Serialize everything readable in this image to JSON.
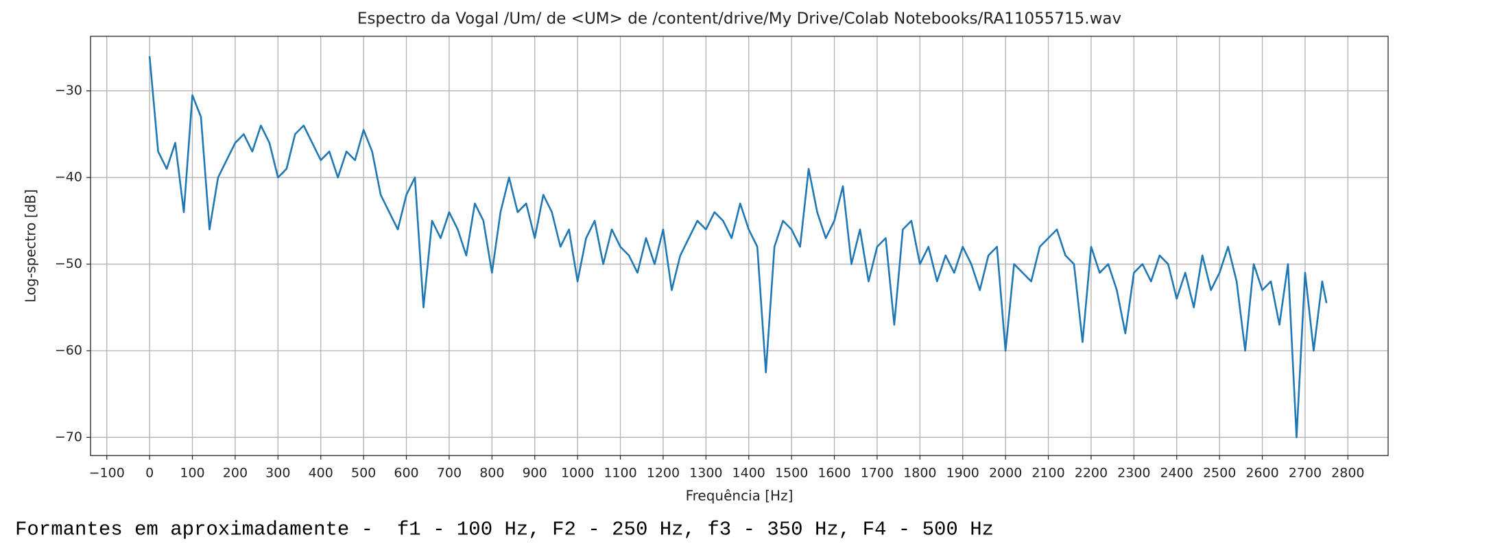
{
  "chart_data": {
    "type": "line",
    "title": "Espectro da Vogal /Um/ de <UM> de /content/drive/My Drive/Colab Notebooks/RA11055715.wav",
    "x_label": "Frequência [Hz]",
    "y_label": "Log-spectro [dB]",
    "x": [
      0,
      20,
      40,
      60,
      80,
      100,
      120,
      140,
      160,
      180,
      200,
      220,
      240,
      260,
      280,
      300,
      320,
      340,
      360,
      380,
      400,
      420,
      440,
      460,
      480,
      500,
      520,
      540,
      560,
      580,
      600,
      620,
      640,
      660,
      680,
      700,
      720,
      740,
      760,
      780,
      800,
      820,
      840,
      860,
      880,
      900,
      920,
      940,
      960,
      980,
      1000,
      1020,
      1040,
      1060,
      1080,
      1100,
      1120,
      1140,
      1160,
      1180,
      1200,
      1220,
      1240,
      1260,
      1280,
      1300,
      1320,
      1340,
      1360,
      1380,
      1400,
      1420,
      1440,
      1460,
      1480,
      1500,
      1520,
      1540,
      1560,
      1580,
      1600,
      1620,
      1640,
      1660,
      1680,
      1700,
      1720,
      1740,
      1760,
      1780,
      1800,
      1820,
      1840,
      1860,
      1880,
      1900,
      1920,
      1940,
      1960,
      1980,
      2000,
      2020,
      2040,
      2060,
      2080,
      2100,
      2120,
      2140,
      2160,
      2180,
      2200,
      2220,
      2240,
      2260,
      2280,
      2300,
      2320,
      2340,
      2360,
      2380,
      2400,
      2420,
      2440,
      2460,
      2480,
      2500,
      2520,
      2540,
      2560,
      2580,
      2600,
      2620,
      2640,
      2660,
      2680,
      2700,
      2720,
      2740,
      2750
    ],
    "series": [
      {
        "color": "#1f77b4",
        "values": [
          -26,
          -37,
          -39,
          -36,
          -44,
          -30.5,
          -33,
          -46,
          -40,
          -38,
          -36,
          -35,
          -37,
          -34,
          -36,
          -40,
          -39,
          -35,
          -34,
          -36,
          -38,
          -37,
          -40,
          -37,
          -38,
          -34.5,
          -37,
          -42,
          -44,
          -46,
          -42,
          -40,
          -55,
          -45,
          -47,
          -44,
          -46,
          -49,
          -43,
          -45,
          -51,
          -44,
          -40,
          -44,
          -43,
          -47,
          -42,
          -44,
          -48,
          -46,
          -52,
          -47,
          -45,
          -50,
          -46,
          -48,
          -49,
          -51,
          -47,
          -50,
          -46,
          -53,
          -49,
          -47,
          -45,
          -46,
          -44,
          -45,
          -47,
          -43,
          -46,
          -48,
          -62.5,
          -48,
          -45,
          -46,
          -48,
          -39,
          -44,
          -47,
          -45,
          -41,
          -50,
          -46,
          -52,
          -48,
          -47,
          -57,
          -46,
          -45,
          -50,
          -48,
          -52,
          -49,
          -51,
          -48,
          -50,
          -53,
          -49,
          -48,
          -60,
          -50,
          -51,
          -52,
          -48,
          -47,
          -46,
          -49,
          -50,
          -59,
          -48,
          -51,
          -50,
          -53,
          -58,
          -51,
          -50,
          -52,
          -49,
          -50,
          -54,
          -51,
          -55,
          -49,
          -53,
          -51,
          -48,
          -52,
          -60,
          -50,
          -53,
          -52,
          -57,
          -50,
          -70,
          -51,
          -60,
          -52,
          -54.5
        ]
      }
    ],
    "xlim": [
      -138,
      2894
    ],
    "ylim": [
      -72.1,
      -23.7
    ],
    "xticks": [
      {
        "value": -100,
        "label": "−100"
      },
      0,
      100,
      200,
      300,
      400,
      500,
      600,
      700,
      800,
      900,
      1000,
      1100,
      1200,
      1300,
      1400,
      1500,
      1600,
      1700,
      1800,
      1900,
      2000,
      2100,
      2200,
      2300,
      2400,
      2500,
      2600,
      2700,
      2800
    ],
    "yticks": [
      {
        "value": -30,
        "label": "−30"
      },
      {
        "value": -40,
        "label": "−40"
      },
      {
        "value": -50,
        "label": "−50"
      },
      {
        "value": -60,
        "label": "−60"
      },
      {
        "value": -70,
        "label": "−70"
      }
    ],
    "grid": true
  },
  "footer": "Formantes em aproximadamente -  f1 - 100 Hz, F2 - 250 Hz, f3 - 350 Hz, F4 - 500 Hz"
}
